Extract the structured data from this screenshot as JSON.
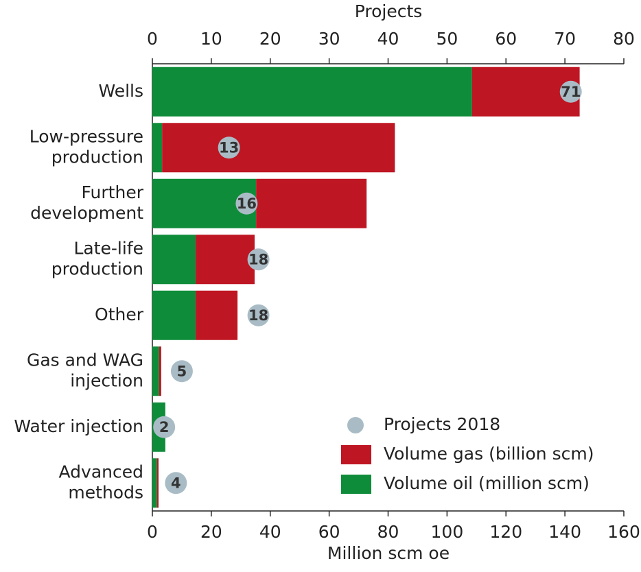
{
  "chart_data": {
    "type": "bar",
    "orientation": "horizontal",
    "stacked": true,
    "xlabel": "Million scm oe",
    "x2label": "Projects",
    "categories": [
      [
        "Wells"
      ],
      [
        "Low-pressure",
        "production"
      ],
      [
        "Further",
        "development"
      ],
      [
        "Late-life",
        "production"
      ],
      [
        "Other"
      ],
      [
        "Gas and WAG",
        "injection"
      ],
      [
        "Water injection"
      ],
      [
        "Advanced",
        "methods"
      ]
    ],
    "series": [
      {
        "name": "Volume oil (million scm)",
        "color": "#0f8c3a",
        "values": [
          108.5,
          3.3,
          35.2,
          14.7,
          14.7,
          2.3,
          4.4,
          1.6
        ]
      },
      {
        "name": "Volume gas (billion scm)",
        "color": "#be1622",
        "values": [
          36.5,
          79,
          37.5,
          20,
          14.2,
          0.7,
          0,
          0.5
        ]
      },
      {
        "name": "Projects 2018",
        "type": "scatter",
        "axis": "x2",
        "color": "#a9bcc6",
        "values": [
          71,
          13,
          16,
          18,
          18,
          5,
          2,
          4
        ]
      }
    ],
    "xlim": [
      0,
      160
    ],
    "xticks": [
      0,
      20,
      40,
      60,
      80,
      100,
      120,
      140,
      160
    ],
    "x2lim": [
      0,
      80
    ],
    "x2ticks": [
      0,
      10,
      20,
      30,
      40,
      50,
      60,
      70,
      80
    ],
    "legend": "lower right"
  }
}
